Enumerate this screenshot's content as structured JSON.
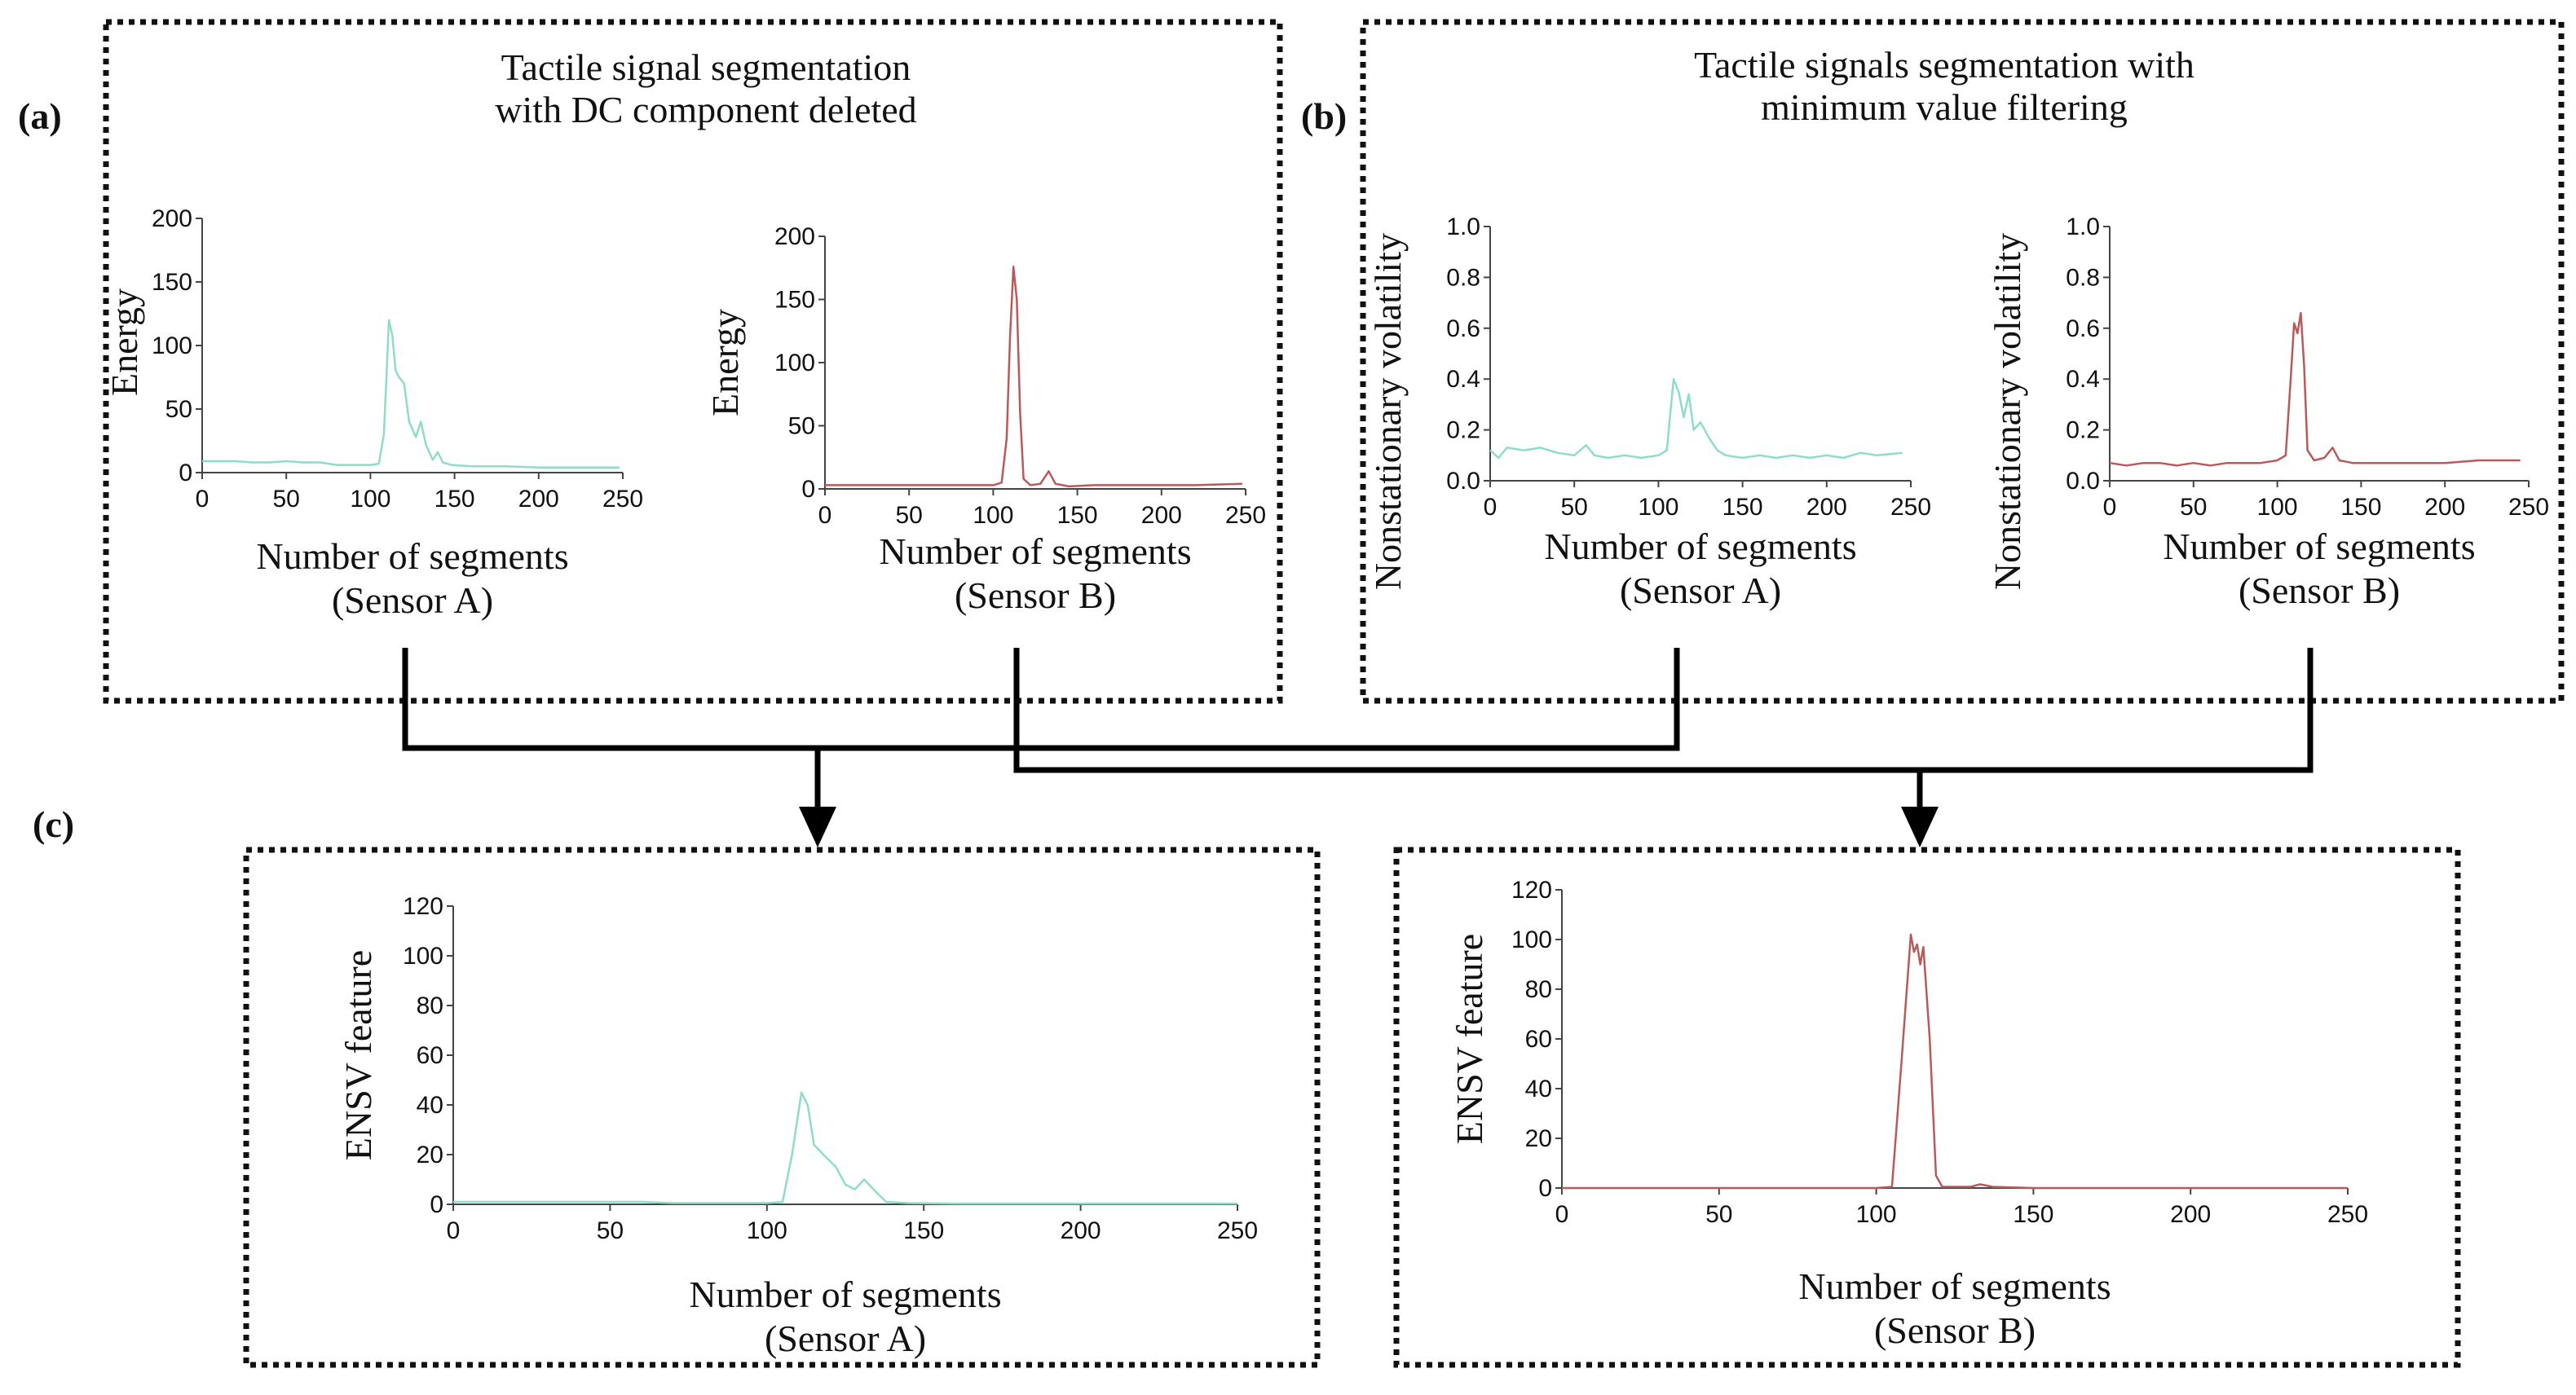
{
  "panel_labels": {
    "a": "(a)",
    "b": "(b)",
    "c": "(c)"
  },
  "boxes": {
    "a_title_line1": "Tactile signal segmentation",
    "a_title_line2": "with DC component deleted",
    "b_title_line1": "Tactile signals segmentation with",
    "b_title_line2": "minimum value filtering"
  },
  "colors": {
    "sensor_a": "#8fdcc8",
    "sensor_b": "#b85a5a"
  },
  "chart_data": [
    {
      "id": "a_sensor_a",
      "type": "line",
      "ylabel": "Energy",
      "xlabel": "Number of segments",
      "xlabel2": "(Sensor A)",
      "xlim": [
        0,
        250
      ],
      "ylim": [
        0,
        200
      ],
      "xticks": [
        0,
        50,
        100,
        150,
        200,
        250
      ],
      "yticks": [
        0,
        50,
        100,
        150,
        200
      ],
      "series": [
        {
          "name": "Sensor A",
          "color": "#8fdcc8",
          "points": [
            [
              0,
              9
            ],
            [
              10,
              9
            ],
            [
              20,
              9
            ],
            [
              30,
              8
            ],
            [
              40,
              8
            ],
            [
              50,
              9
            ],
            [
              60,
              8
            ],
            [
              70,
              8
            ],
            [
              80,
              6
            ],
            [
              90,
              6
            ],
            [
              100,
              6
            ],
            [
              105,
              7
            ],
            [
              108,
              30
            ],
            [
              111,
              120
            ],
            [
              113,
              108
            ],
            [
              115,
              80
            ],
            [
              117,
              75
            ],
            [
              120,
              70
            ],
            [
              123,
              40
            ],
            [
              127,
              28
            ],
            [
              130,
              40
            ],
            [
              133,
              22
            ],
            [
              137,
              10
            ],
            [
              140,
              16
            ],
            [
              143,
              8
            ],
            [
              148,
              6
            ],
            [
              160,
              5
            ],
            [
              180,
              5
            ],
            [
              200,
              4
            ],
            [
              220,
              4
            ],
            [
              248,
              4
            ]
          ]
        }
      ]
    },
    {
      "id": "a_sensor_b",
      "type": "line",
      "ylabel": "Energy",
      "xlabel": "Number of segments",
      "xlabel2": "(Sensor B)",
      "xlim": [
        0,
        250
      ],
      "ylim": [
        0,
        200
      ],
      "xticks": [
        0,
        50,
        100,
        150,
        200,
        250
      ],
      "yticks": [
        0,
        50,
        100,
        150,
        200
      ],
      "series": [
        {
          "name": "Sensor B",
          "color": "#b85a5a",
          "points": [
            [
              0,
              3
            ],
            [
              20,
              3
            ],
            [
              40,
              3
            ],
            [
              60,
              3
            ],
            [
              80,
              3
            ],
            [
              100,
              3
            ],
            [
              105,
              5
            ],
            [
              108,
              40
            ],
            [
              110,
              120
            ],
            [
              112,
              176
            ],
            [
              114,
              150
            ],
            [
              116,
              60
            ],
            [
              118,
              8
            ],
            [
              122,
              3
            ],
            [
              128,
              4
            ],
            [
              133,
              14
            ],
            [
              137,
              4
            ],
            [
              145,
              2
            ],
            [
              160,
              3
            ],
            [
              180,
              3
            ],
            [
              200,
              3
            ],
            [
              220,
              3
            ],
            [
              248,
              4
            ]
          ]
        }
      ]
    },
    {
      "id": "b_sensor_a",
      "type": "line",
      "ylabel": "Nonstationary volatility",
      "xlabel": "Number of segments",
      "xlabel2": "(Sensor A)",
      "xlim": [
        0,
        250
      ],
      "ylim": [
        0,
        1.0
      ],
      "xticks": [
        0,
        50,
        100,
        150,
        200,
        250
      ],
      "yticks": [
        0.0,
        0.2,
        0.4,
        0.6,
        0.8,
        1.0
      ],
      "series": [
        {
          "name": "Sensor A",
          "color": "#8fdcc8",
          "points": [
            [
              0,
              0.12
            ],
            [
              5,
              0.09
            ],
            [
              10,
              0.13
            ],
            [
              20,
              0.12
            ],
            [
              30,
              0.13
            ],
            [
              40,
              0.11
            ],
            [
              50,
              0.1
            ],
            [
              57,
              0.14
            ],
            [
              62,
              0.1
            ],
            [
              70,
              0.09
            ],
            [
              80,
              0.1
            ],
            [
              90,
              0.09
            ],
            [
              100,
              0.1
            ],
            [
              105,
              0.12
            ],
            [
              109,
              0.4
            ],
            [
              112,
              0.35
            ],
            [
              115,
              0.25
            ],
            [
              118,
              0.34
            ],
            [
              121,
              0.2
            ],
            [
              125,
              0.23
            ],
            [
              130,
              0.17
            ],
            [
              135,
              0.12
            ],
            [
              140,
              0.1
            ],
            [
              150,
              0.09
            ],
            [
              160,
              0.1
            ],
            [
              170,
              0.09
            ],
            [
              180,
              0.1
            ],
            [
              190,
              0.09
            ],
            [
              200,
              0.1
            ],
            [
              210,
              0.09
            ],
            [
              220,
              0.11
            ],
            [
              230,
              0.1
            ],
            [
              245,
              0.11
            ]
          ]
        }
      ]
    },
    {
      "id": "b_sensor_b",
      "type": "line",
      "ylabel": "Nonstationary volatility",
      "xlabel": "Number of segments",
      "xlabel2": "(Sensor B)",
      "xlim": [
        0,
        250
      ],
      "ylim": [
        0,
        1.0
      ],
      "xticks": [
        0,
        50,
        100,
        150,
        200,
        250
      ],
      "yticks": [
        0.0,
        0.2,
        0.4,
        0.6,
        0.8,
        1.0
      ],
      "series": [
        {
          "name": "Sensor B",
          "color": "#b85a5a",
          "points": [
            [
              0,
              0.07
            ],
            [
              10,
              0.06
            ],
            [
              20,
              0.07
            ],
            [
              30,
              0.07
            ],
            [
              40,
              0.06
            ],
            [
              50,
              0.07
            ],
            [
              60,
              0.06
            ],
            [
              70,
              0.07
            ],
            [
              80,
              0.07
            ],
            [
              90,
              0.07
            ],
            [
              100,
              0.08
            ],
            [
              105,
              0.1
            ],
            [
              108,
              0.4
            ],
            [
              110,
              0.62
            ],
            [
              112,
              0.58
            ],
            [
              114,
              0.66
            ],
            [
              116,
              0.45
            ],
            [
              118,
              0.12
            ],
            [
              122,
              0.08
            ],
            [
              128,
              0.09
            ],
            [
              133,
              0.13
            ],
            [
              137,
              0.08
            ],
            [
              145,
              0.07
            ],
            [
              160,
              0.07
            ],
            [
              180,
              0.07
            ],
            [
              200,
              0.07
            ],
            [
              220,
              0.08
            ],
            [
              245,
              0.08
            ]
          ]
        }
      ]
    },
    {
      "id": "c_sensor_a",
      "type": "line",
      "ylabel": "ENSV feature",
      "xlabel": "Number of segments",
      "xlabel2": "(Sensor A)",
      "xlim": [
        0,
        250
      ],
      "ylim": [
        0,
        120
      ],
      "xticks": [
        0,
        50,
        100,
        150,
        200,
        250
      ],
      "yticks": [
        0,
        20,
        40,
        60,
        80,
        100,
        120
      ],
      "series": [
        {
          "name": "Sensor A",
          "color": "#8fdcc8",
          "points": [
            [
              0,
              1
            ],
            [
              20,
              1
            ],
            [
              40,
              1
            ],
            [
              60,
              1
            ],
            [
              70,
              0.5
            ],
            [
              90,
              0.5
            ],
            [
              100,
              0.5
            ],
            [
              105,
              1
            ],
            [
              108,
              20
            ],
            [
              111,
              45
            ],
            [
              113,
              40
            ],
            [
              115,
              24
            ],
            [
              118,
              20
            ],
            [
              122,
              15
            ],
            [
              125,
              8
            ],
            [
              128,
              6
            ],
            [
              131,
              10
            ],
            [
              134,
              6
            ],
            [
              138,
              1
            ],
            [
              145,
              0.5
            ],
            [
              160,
              0.3
            ],
            [
              200,
              0.3
            ],
            [
              250,
              0.3
            ]
          ]
        }
      ]
    },
    {
      "id": "c_sensor_b",
      "type": "line",
      "ylabel": "ENSV feature",
      "xlabel": "Number of segments",
      "xlabel2": "(Sensor B)",
      "xlim": [
        0,
        250
      ],
      "ylim": [
        0,
        120
      ],
      "xticks": [
        0,
        50,
        100,
        150,
        200,
        250
      ],
      "yticks": [
        0,
        20,
        40,
        60,
        80,
        100,
        120
      ],
      "series": [
        {
          "name": "Sensor B",
          "color": "#b85a5a",
          "points": [
            [
              0,
              0
            ],
            [
              50,
              0
            ],
            [
              100,
              0
            ],
            [
              105,
              0.5
            ],
            [
              108,
              50
            ],
            [
              111,
              102
            ],
            [
              112,
              95
            ],
            [
              113,
              98
            ],
            [
              114,
              90
            ],
            [
              115,
              97
            ],
            [
              117,
              60
            ],
            [
              119,
              5
            ],
            [
              121,
              0.5
            ],
            [
              130,
              0.5
            ],
            [
              133,
              1.5
            ],
            [
              137,
              0.5
            ],
            [
              150,
              0
            ],
            [
              200,
              0
            ],
            [
              250,
              0
            ]
          ]
        }
      ]
    }
  ]
}
